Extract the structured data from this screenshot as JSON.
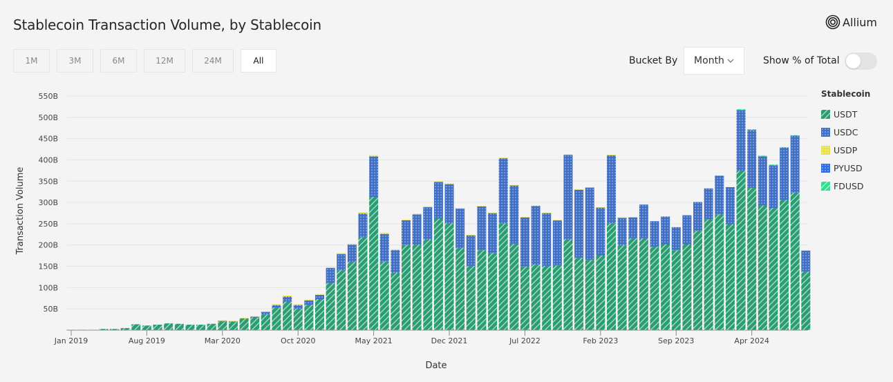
{
  "header": {
    "title": "Stablecoin Transaction Volume, by Stablecoin",
    "logo_text": "Allium"
  },
  "ranges": [
    {
      "label": "1M",
      "active": false
    },
    {
      "label": "3M",
      "active": false
    },
    {
      "label": "6M",
      "active": false
    },
    {
      "label": "12M",
      "active": false
    },
    {
      "label": "24M",
      "active": false
    },
    {
      "label": "All",
      "active": true
    }
  ],
  "controls": {
    "bucket_label": "Bucket By",
    "bucket_value": "Month",
    "percent_label": "Show % of Total",
    "percent_on": false
  },
  "colors": {
    "USDT": "#2a9d72",
    "USDC": "#3f6fc6",
    "USDP": "#e9e24c",
    "PYUSD": "#2f6fe6",
    "FDUSD": "#30e08e",
    "grid": "#e4e4e4"
  },
  "chart_data": {
    "type": "bar",
    "stacked": true,
    "title": "Stablecoin Transaction Volume, by Stablecoin",
    "xlabel": "Date",
    "ylabel": "Transaction Volume",
    "ylim": [
      0,
      550
    ],
    "yticks": [
      "50B",
      "100B",
      "150B",
      "200B",
      "250B",
      "300B",
      "350B",
      "400B",
      "450B",
      "500B",
      "550B"
    ],
    "xtick_labels": [
      {
        "month": "2019-01",
        "label": "Jan 2019"
      },
      {
        "month": "2019-08",
        "label": "Aug 2019"
      },
      {
        "month": "2020-03",
        "label": "Mar 2020"
      },
      {
        "month": "2020-10",
        "label": "Oct 2020"
      },
      {
        "month": "2021-05",
        "label": "May 2021"
      },
      {
        "month": "2021-12",
        "label": "Dec 2021"
      },
      {
        "month": "2022-07",
        "label": "Jul 2022"
      },
      {
        "month": "2023-02",
        "label": "Feb 2023"
      },
      {
        "month": "2023-09",
        "label": "Sep 2023"
      },
      {
        "month": "2024-04",
        "label": "Apr 2024"
      }
    ],
    "grid": true,
    "legend_title": "Stablecoin",
    "legend_position": "right",
    "unit": "B",
    "x": [
      "2019-01",
      "2019-02",
      "2019-03",
      "2019-04",
      "2019-05",
      "2019-06",
      "2019-07",
      "2019-08",
      "2019-09",
      "2019-10",
      "2019-11",
      "2019-12",
      "2020-01",
      "2020-02",
      "2020-03",
      "2020-04",
      "2020-05",
      "2020-06",
      "2020-07",
      "2020-08",
      "2020-09",
      "2020-10",
      "2020-11",
      "2020-12",
      "2021-01",
      "2021-02",
      "2021-03",
      "2021-04",
      "2021-05",
      "2021-06",
      "2021-07",
      "2021-08",
      "2021-09",
      "2021-10",
      "2021-11",
      "2021-12",
      "2022-01",
      "2022-02",
      "2022-03",
      "2022-04",
      "2022-05",
      "2022-06",
      "2022-07",
      "2022-08",
      "2022-09",
      "2022-10",
      "2022-11",
      "2022-12",
      "2023-01",
      "2023-02",
      "2023-03",
      "2023-04",
      "2023-05",
      "2023-06",
      "2023-07",
      "2023-08",
      "2023-09",
      "2023-10",
      "2023-11",
      "2023-12",
      "2024-01",
      "2024-02",
      "2024-03",
      "2024-04",
      "2024-05",
      "2024-06",
      "2024-07",
      "2024-08",
      "2024-09"
    ],
    "series": [
      {
        "name": "USDT",
        "values": [
          1,
          1,
          1,
          3,
          3,
          5,
          14,
          11,
          13,
          16,
          15,
          13,
          13,
          15,
          20,
          20,
          28,
          30,
          37,
          53,
          67,
          50,
          60,
          73,
          111,
          141,
          160,
          218,
          313,
          161,
          135,
          200,
          201,
          213,
          262,
          251,
          193,
          151,
          188,
          181,
          251,
          203,
          149,
          154,
          151,
          152,
          213,
          170,
          165,
          176,
          251,
          200,
          216,
          216,
          196,
          202,
          188,
          202,
          233,
          260,
          272,
          249,
          374,
          334,
          293,
          287,
          306,
          323,
          138
        ]
      },
      {
        "name": "USDC",
        "values": [
          0,
          0,
          0,
          0,
          0,
          0,
          0,
          0,
          0,
          0,
          0,
          0,
          0,
          0,
          2,
          1,
          0,
          2,
          6,
          6,
          12,
          9,
          10,
          10,
          35,
          38,
          41,
          56,
          95,
          65,
          53,
          58,
          71,
          76,
          86,
          92,
          93,
          72,
          103,
          94,
          153,
          137,
          116,
          138,
          124,
          106,
          199,
          160,
          170,
          112,
          160,
          64,
          49,
          79,
          60,
          65,
          54,
          68,
          68,
          73,
          91,
          87,
          143,
          136,
          115,
          100,
          123,
          134,
          49
        ]
      },
      {
        "name": "USDP",
        "values": [
          0,
          0,
          0,
          0,
          0,
          0,
          0,
          0,
          0,
          0,
          0,
          0,
          0,
          0,
          1,
          1,
          1,
          1,
          1,
          2,
          2,
          2,
          2,
          2,
          2,
          2,
          2,
          3,
          3,
          3,
          2,
          2,
          2,
          2,
          2,
          2,
          1,
          1,
          1,
          1,
          1,
          1,
          1,
          1,
          1,
          1,
          1,
          1,
          1,
          1,
          1,
          1,
          0,
          0,
          0,
          0,
          0,
          0,
          0,
          0,
          0,
          0,
          0,
          0,
          0,
          0,
          0,
          0,
          0
        ]
      },
      {
        "name": "PYUSD",
        "values": [
          0,
          0,
          0,
          0,
          0,
          0,
          0,
          0,
          0,
          0,
          0,
          0,
          0,
          0,
          0,
          0,
          0,
          0,
          0,
          0,
          0,
          0,
          0,
          0,
          0,
          0,
          0,
          0,
          0,
          0,
          0,
          0,
          0,
          0,
          0,
          0,
          0,
          0,
          0,
          0,
          0,
          0,
          0,
          0,
          0,
          0,
          0,
          0,
          0,
          0,
          0,
          0,
          0,
          0,
          0,
          0,
          0,
          0,
          0,
          0,
          0,
          0,
          0,
          0,
          0,
          0,
          0,
          0,
          0
        ]
      },
      {
        "name": "FDUSD",
        "values": [
          0,
          0,
          0,
          0,
          0,
          0,
          0,
          0,
          0,
          0,
          0,
          0,
          0,
          0,
          0,
          0,
          0,
          0,
          0,
          0,
          0,
          0,
          0,
          0,
          0,
          0,
          0,
          0,
          0,
          0,
          0,
          0,
          0,
          0,
          0,
          0,
          0,
          0,
          0,
          0,
          0,
          0,
          0,
          0,
          0,
          0,
          0,
          0,
          0,
          0,
          0,
          0,
          0,
          0,
          0,
          0,
          0,
          0,
          0,
          0,
          0,
          0,
          2,
          2,
          2,
          2,
          1,
          1,
          0
        ]
      }
    ]
  }
}
